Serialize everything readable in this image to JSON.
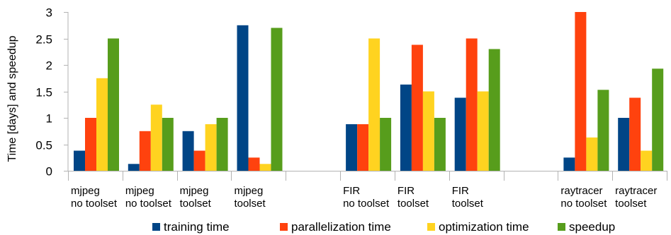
{
  "chart_data": {
    "type": "bar",
    "ylabel": "Time [days] and speedup",
    "xlabel": "",
    "ylim": [
      0,
      3
    ],
    "yticks": [
      "0",
      "0.5",
      "1",
      "1.5",
      "2",
      "2.5",
      "3"
    ],
    "grid": false,
    "legend_position": "bottom",
    "categories": [
      [
        "mjpeg",
        "no toolset"
      ],
      [
        "mjpeg",
        "no toolset"
      ],
      [
        "mjpeg",
        "toolset"
      ],
      [
        "mjpeg",
        "toolset"
      ],
      [
        "",
        ""
      ],
      [
        "FIR",
        "no toolset"
      ],
      [
        "FIR",
        "toolset"
      ],
      [
        "FIR",
        "toolset"
      ],
      [
        "",
        ""
      ],
      [
        "raytracer",
        "no toolset"
      ],
      [
        "raytracer",
        "toolset"
      ]
    ],
    "series": [
      {
        "name": "training time",
        "color": "#004586",
        "values": [
          0.38,
          0.13,
          0.75,
          2.75,
          0,
          0.88,
          1.63,
          1.38,
          0,
          0.25,
          1.0
        ]
      },
      {
        "name": "parallelization time",
        "color": "#ff420e",
        "values": [
          1.0,
          0.75,
          0.38,
          0.25,
          0,
          0.88,
          2.38,
          2.5,
          0,
          3.0,
          1.38
        ]
      },
      {
        "name": "optimization time",
        "color": "#ffd320",
        "values": [
          1.75,
          1.25,
          0.88,
          0.13,
          0,
          2.5,
          1.5,
          1.5,
          0,
          0.63,
          0.38
        ]
      },
      {
        "name": "speedup",
        "color": "#579d1c",
        "values": [
          2.5,
          1.0,
          1.0,
          2.7,
          0,
          1.0,
          1.0,
          2.3,
          0,
          1.53,
          1.93
        ]
      }
    ]
  }
}
